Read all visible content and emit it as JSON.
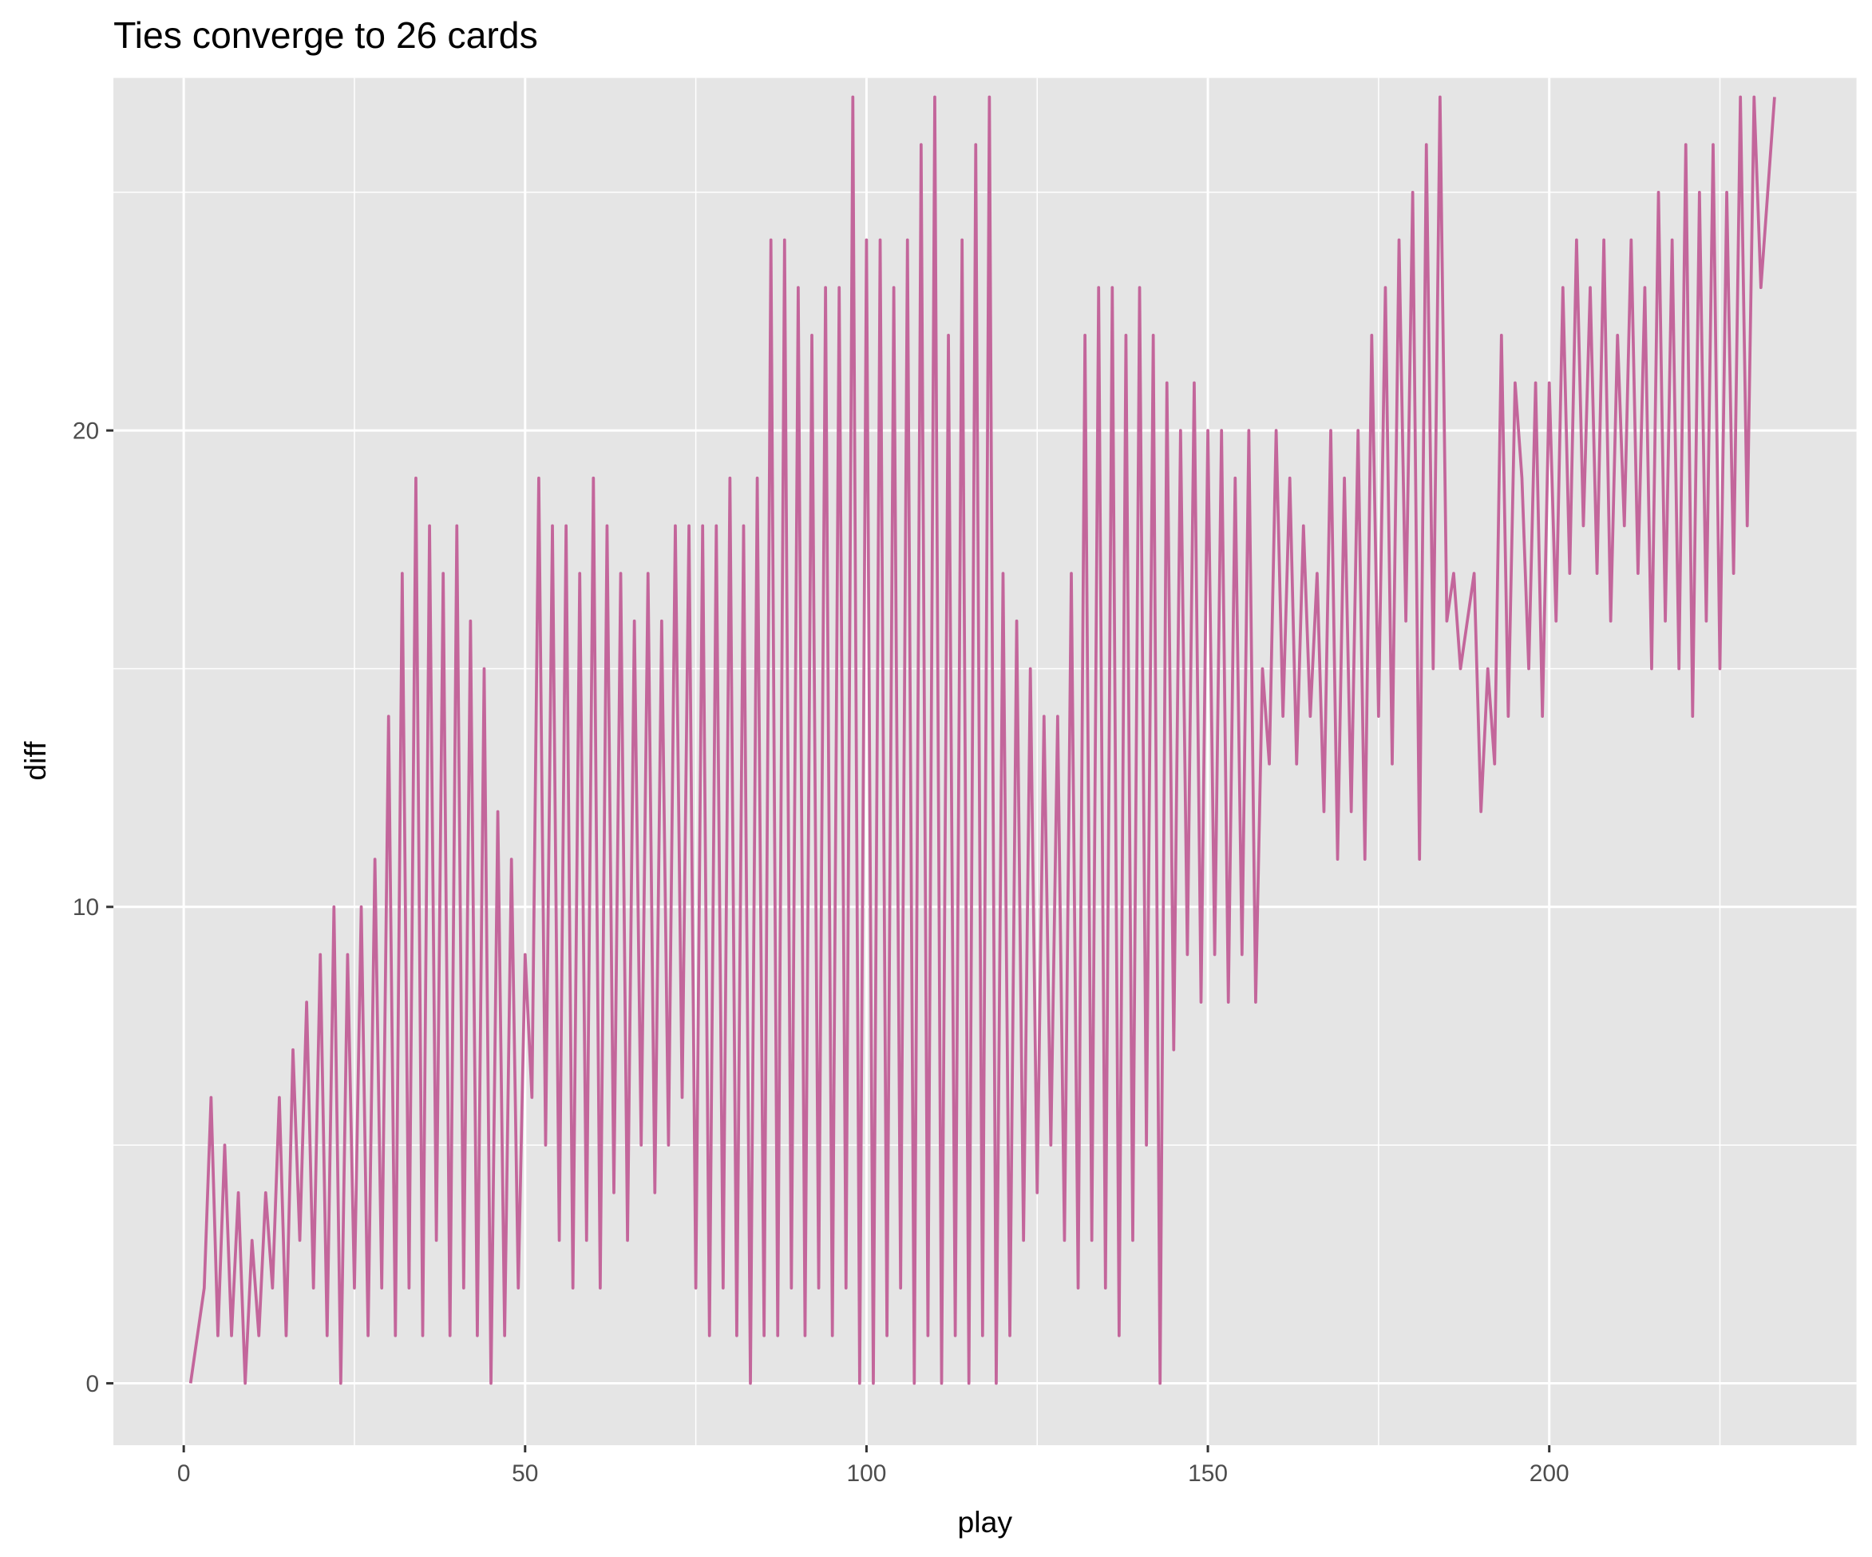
{
  "chart_data": {
    "type": "line",
    "title": "Ties converge to 26 cards",
    "xlabel": "play",
    "ylabel": "diff",
    "xlim": [
      -10.3,
      245
    ],
    "ylim": [
      -1.3,
      27.4
    ],
    "xticks": [
      0,
      50,
      100,
      150,
      200
    ],
    "yticks": [
      0,
      10,
      20
    ],
    "xminor": [
      25,
      75,
      125,
      175,
      225
    ],
    "yminor": [
      5,
      15,
      25
    ],
    "grid": true,
    "color": "#c3669b",
    "x": [
      1,
      2,
      3,
      4,
      5,
      6,
      7,
      8,
      9,
      10,
      11,
      12,
      13,
      14,
      15,
      16,
      17,
      18,
      19,
      20,
      21,
      22,
      23,
      24,
      25,
      26,
      27,
      28,
      29,
      30,
      31,
      32,
      33,
      34,
      35,
      36,
      37,
      38,
      39,
      40,
      41,
      42,
      43,
      44,
      45,
      46,
      47,
      48,
      49,
      50,
      51,
      52,
      53,
      54,
      55,
      56,
      57,
      58,
      59,
      60,
      61,
      62,
      63,
      64,
      65,
      66,
      67,
      68,
      69,
      70,
      71,
      72,
      73,
      74,
      75,
      76,
      77,
      78,
      79,
      80,
      81,
      82,
      83,
      84,
      85,
      86,
      87,
      88,
      89,
      90,
      91,
      92,
      93,
      94,
      95,
      96,
      97,
      98,
      99,
      100,
      101,
      102,
      103,
      104,
      105,
      106,
      107,
      108,
      109,
      110,
      111,
      112,
      113,
      114,
      115,
      116,
      117,
      118,
      119,
      120,
      121,
      122,
      123,
      124,
      125,
      126,
      127,
      128,
      129,
      130,
      131,
      132,
      133,
      134,
      135,
      136,
      137,
      138,
      139,
      140,
      141,
      142,
      143,
      144,
      145,
      146,
      147,
      148,
      149,
      150,
      151,
      152,
      153,
      154,
      155,
      156,
      157,
      158,
      159,
      160,
      161,
      162,
      163,
      164,
      165,
      166,
      167,
      168,
      169,
      170,
      171,
      172,
      173,
      174,
      175,
      176,
      177,
      178,
      179,
      180,
      181,
      182,
      183,
      184,
      185,
      186,
      187,
      188,
      189,
      190,
      191,
      192,
      193,
      194,
      195,
      196,
      197,
      198,
      199,
      200,
      201,
      202,
      203,
      204,
      205,
      206,
      207,
      208,
      209,
      210,
      211,
      212,
      213,
      214,
      215,
      216,
      217,
      218,
      219,
      220,
      221,
      222,
      223,
      224,
      225,
      226,
      227,
      228,
      229,
      230,
      231,
      232,
      233
    ],
    "values": [
      0,
      1,
      2,
      6,
      1,
      5,
      1,
      4,
      0,
      3,
      1,
      4,
      2,
      6,
      1,
      7,
      3,
      8,
      2,
      9,
      1,
      10,
      0,
      9,
      2,
      10,
      1,
      11,
      2,
      14,
      1,
      17,
      2,
      19,
      1,
      18,
      3,
      17,
      1,
      18,
      2,
      16,
      1,
      15,
      0,
      12,
      1,
      11,
      2,
      9,
      6,
      19,
      5,
      18,
      3,
      18,
      2,
      17,
      3,
      19,
      2,
      18,
      4,
      17,
      3,
      16,
      5,
      17,
      4,
      16,
      5,
      18,
      6,
      18,
      2,
      18,
      1,
      18,
      2,
      19,
      1,
      18,
      0,
      19,
      1,
      24,
      1,
      24,
      2,
      23,
      1,
      22,
      2,
      23,
      1,
      23,
      2,
      27,
      0,
      24,
      0,
      24,
      1,
      23,
      2,
      24,
      0,
      26,
      1,
      27,
      0,
      22,
      1,
      24,
      0,
      26,
      1,
      27,
      0,
      17,
      1,
      16,
      3,
      15,
      4,
      14,
      5,
      14,
      3,
      17,
      2,
      22,
      3,
      23,
      2,
      23,
      1,
      22,
      3,
      23,
      5,
      22,
      0,
      21,
      7,
      20,
      9,
      21,
      8,
      20,
      9,
      20,
      8,
      19,
      9,
      20,
      8,
      15,
      13,
      20,
      14,
      19,
      13,
      18,
      14,
      17,
      12,
      20,
      11,
      19,
      12,
      20,
      11,
      22,
      14,
      23,
      13,
      24,
      16,
      25,
      11,
      26,
      15,
      27,
      16,
      17,
      15,
      16,
      17,
      12,
      15,
      13,
      22,
      14,
      21,
      19,
      15,
      21,
      14,
      21,
      16,
      23,
      17,
      24,
      18,
      23,
      17,
      24,
      16,
      22,
      18,
      24,
      17,
      23,
      15,
      25,
      16,
      24,
      15,
      26,
      14,
      25,
      16,
      26,
      15,
      25,
      17,
      27,
      18,
      27,
      23,
      25,
      27
    ]
  }
}
